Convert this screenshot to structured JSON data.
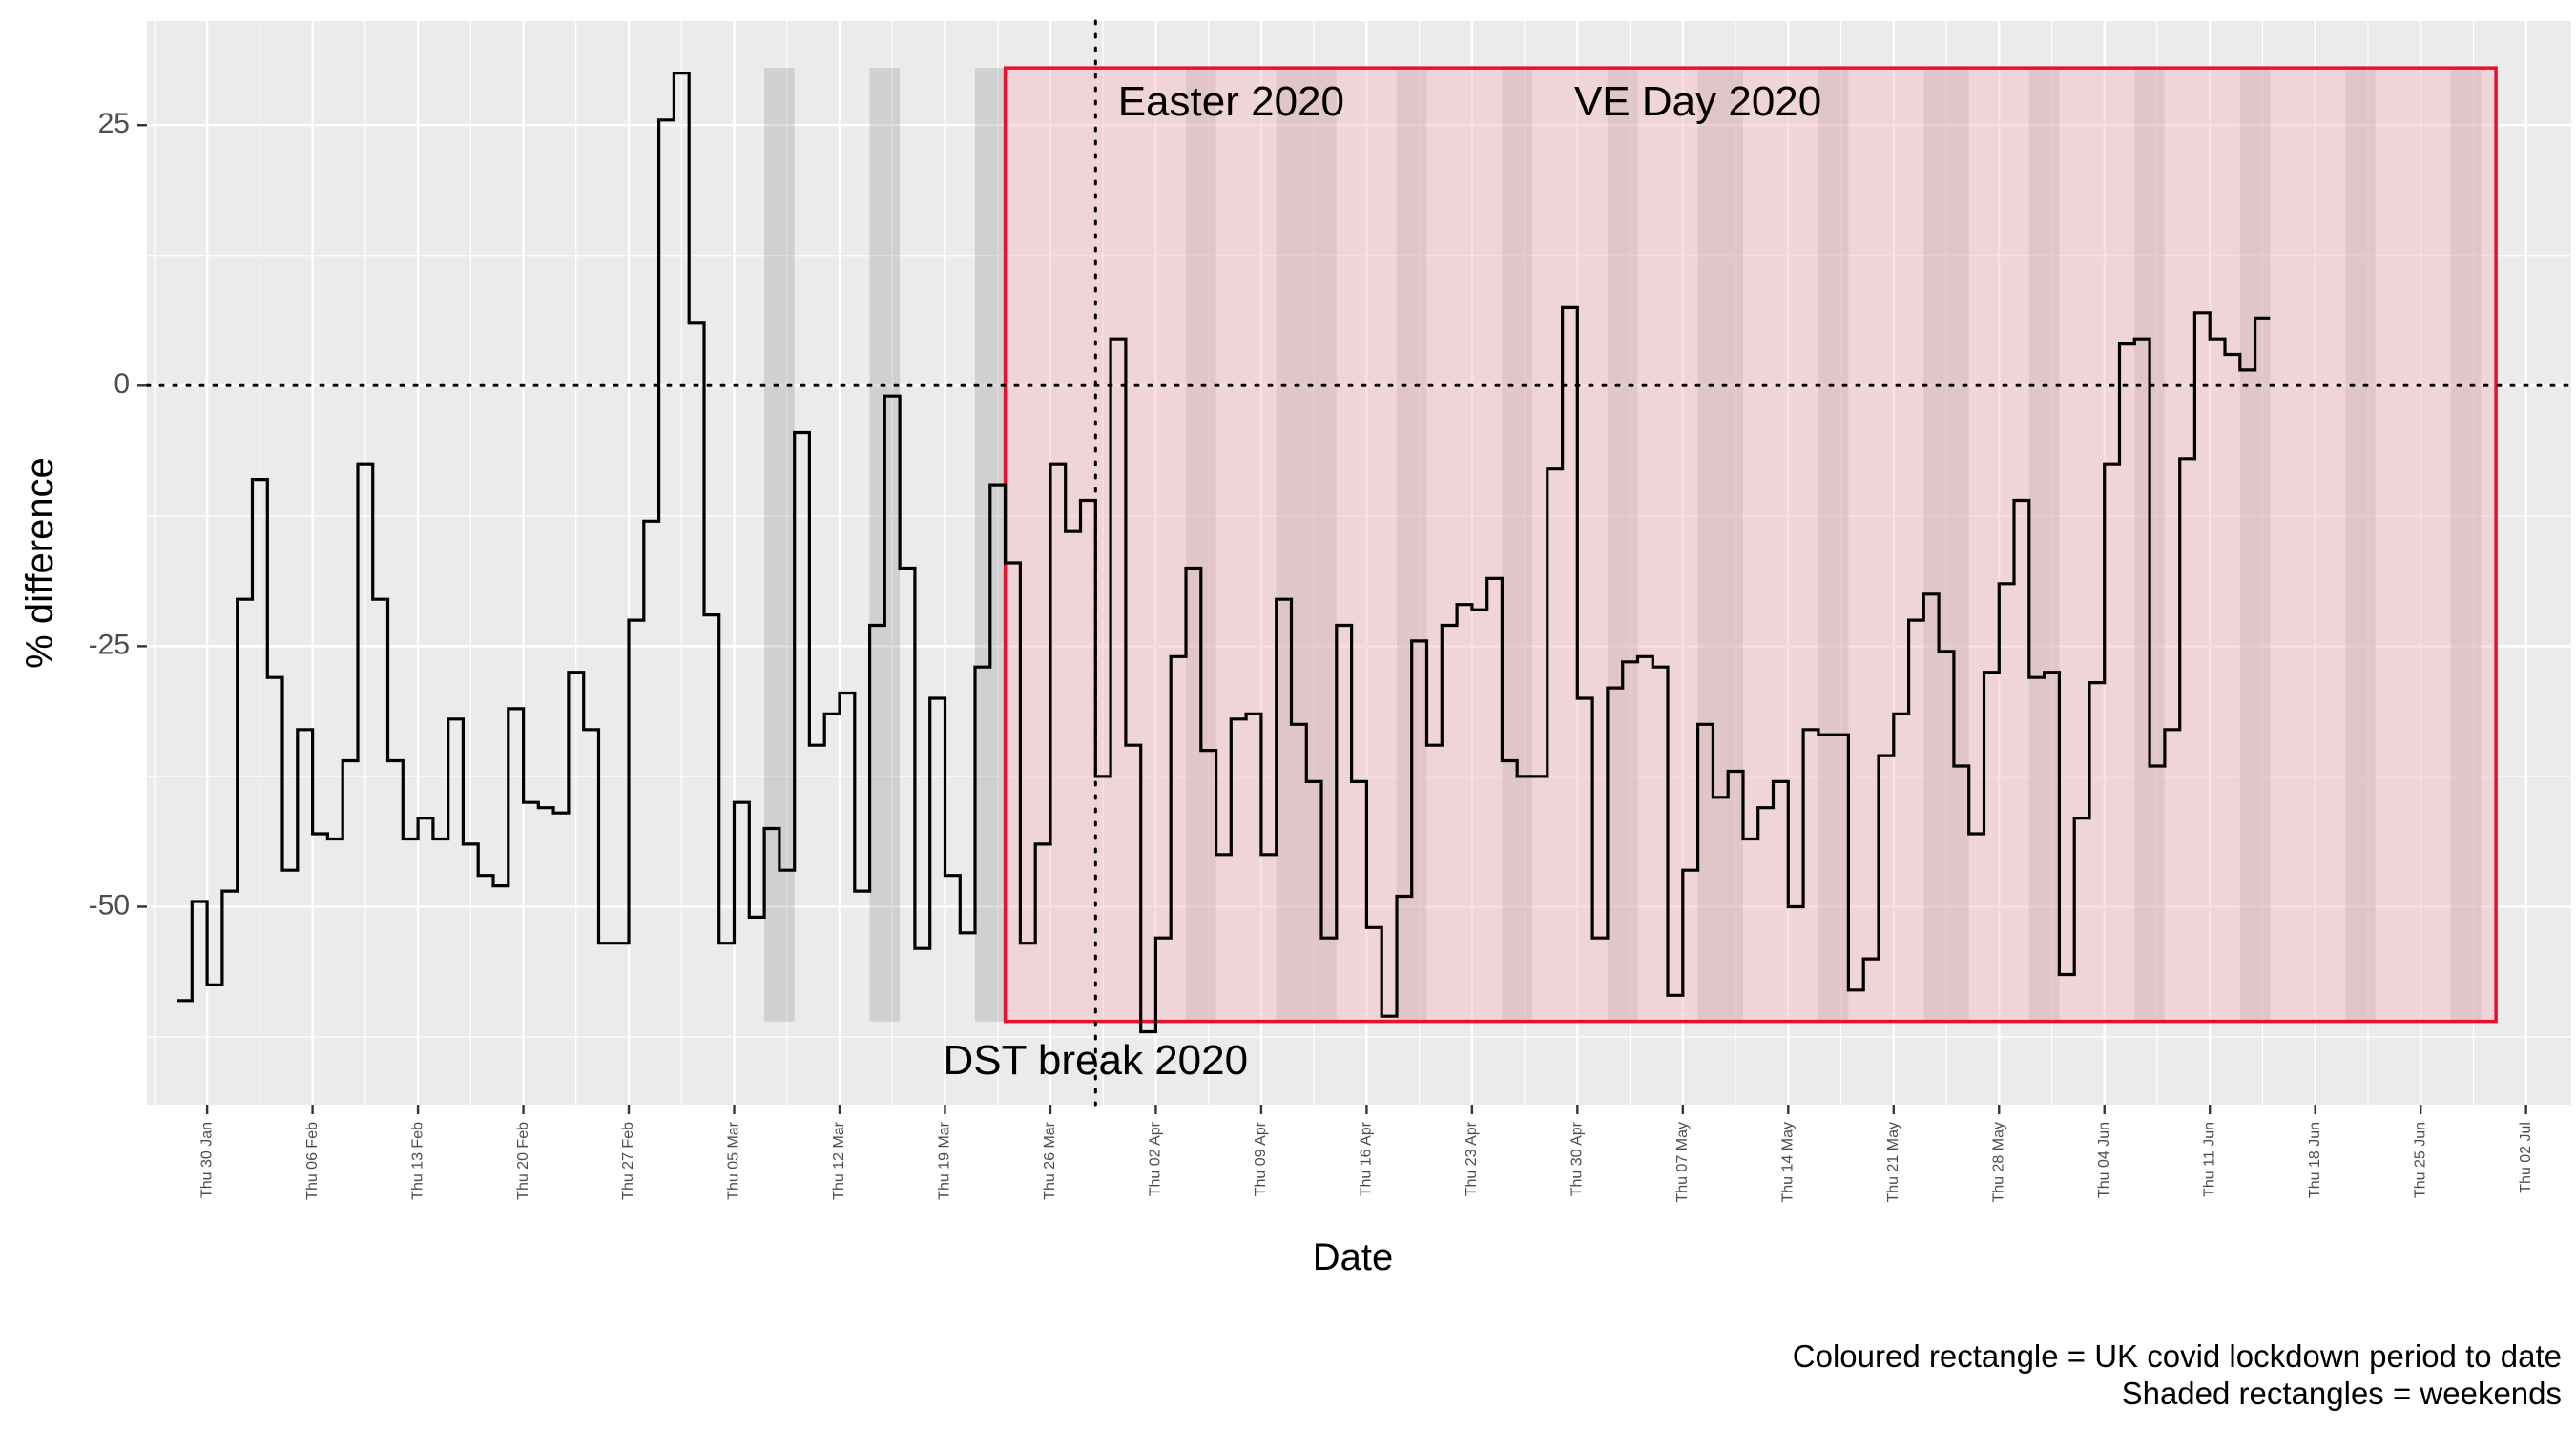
{
  "chart_data": {
    "type": "line",
    "step": true,
    "ylabel": "% difference",
    "xlabel": "Date",
    "ylim": [
      -69,
      35
    ],
    "y_ticks": [
      25,
      0,
      -25,
      -50
    ],
    "y_tick_labels": [
      "25",
      "0",
      "-25",
      "-50"
    ],
    "x_range": [
      "2020-01-26",
      "2020-07-05"
    ],
    "x_tick_dates": [
      "2020-01-30",
      "2020-02-06",
      "2020-02-13",
      "2020-02-20",
      "2020-02-27",
      "2020-03-05",
      "2020-03-12",
      "2020-03-19",
      "2020-03-26",
      "2020-04-02",
      "2020-04-09",
      "2020-04-16",
      "2020-04-23",
      "2020-04-30",
      "2020-05-07",
      "2020-05-14",
      "2020-05-21",
      "2020-05-28",
      "2020-06-04",
      "2020-06-11",
      "2020-06-18",
      "2020-06-25",
      "2020-07-02"
    ],
    "x_tick_labels": [
      "Thu 30 Jan",
      "Thu 06 Feb",
      "Thu 13 Feb",
      "Thu 20 Feb",
      "Thu 27 Feb",
      "Thu 05 Mar",
      "Thu 12 Mar",
      "Thu 19 Mar",
      "Thu 26 Mar",
      "Thu 02 Apr",
      "Thu 09 Apr",
      "Thu 16 Apr",
      "Thu 23 Apr",
      "Thu 30 Apr",
      "Thu 07 May",
      "Thu 14 May",
      "Thu 21 May",
      "Thu 28 May",
      "Thu 04 Jun",
      "Thu 11 Jun",
      "Thu 18 Jun",
      "Thu 25 Jun",
      "Thu 02 Jul"
    ],
    "grid": true,
    "reference_line_y": 0,
    "series": [
      {
        "start_date": "2020-01-28",
        "values": [
          -59,
          -49.5,
          -57.5,
          -48.5,
          -20.5,
          -9,
          -28,
          -46.5,
          -33,
          -43,
          -43.5,
          -36,
          -7.5,
          -20.5,
          -36,
          -43.5,
          -41.5,
          -43.5,
          -32,
          -44,
          -47,
          -48,
          -31,
          -40,
          -40.5,
          -41,
          -27.5,
          -33,
          -53.5,
          -53.5,
          -22.5,
          -13,
          25.5,
          30,
          6,
          -22,
          -53.5,
          -40,
          -51,
          -42.5,
          -46.5,
          -4.5,
          -34.5,
          -31.5,
          -29.5,
          -48.5,
          -23,
          -1,
          -17.5,
          -54,
          -30,
          -47,
          -52.5,
          -27,
          -9.5,
          -17,
          -53.5,
          -44,
          -7.5,
          -14,
          -11,
          -37.5,
          4.5,
          -34.5,
          -62,
          -53,
          -26,
          -17.5,
          -35,
          -45,
          -32,
          -31.5,
          -45,
          -20.5,
          -32.5,
          -38,
          -53,
          -23,
          -38,
          -52,
          -60.5,
          -49,
          -24.5,
          -34.5,
          -23,
          -21,
          -21.5,
          -18.5,
          -36,
          -37.5,
          -37.5,
          -8,
          7.5,
          -30,
          -53,
          -29,
          -26.5,
          -26,
          -27,
          -58.5,
          -46.5,
          -32.5,
          -39.5,
          -37,
          -43.5,
          -40.5,
          -38,
          -50,
          -33,
          -33.5,
          -33.5,
          -58,
          -55,
          -35.5,
          -31.5,
          -22.5,
          -20,
          -25.5,
          -36.5,
          -43,
          -27.5,
          -19,
          -11,
          -28,
          -27.5,
          -56.5,
          -41.5,
          -28.5,
          -7.5,
          4,
          4.5,
          -36.5,
          -33,
          -7,
          7,
          4.5,
          3,
          1.5,
          6.5
        ]
      }
    ],
    "weekend_shading_dates": [
      "2020-03-07",
      "2020-03-14",
      "2020-03-21",
      "2020-04-04",
      "2020-04-11",
      "2020-04-18",
      "2020-04-25",
      "2020-05-02",
      "2020-05-09",
      "2020-05-16",
      "2020-05-23",
      "2020-05-30",
      "2020-06-06",
      "2020-06-13",
      "2020-06-20",
      "2020-06-27"
    ],
    "extra_shading_dates": [
      "2020-04-10",
      "2020-04-13",
      "2020-05-08",
      "2020-05-25"
    ],
    "lockdown_rectangle": {
      "start": "2020-03-23",
      "end": "2020-06-30",
      "ymin": -61,
      "ymax": 30.5,
      "color": "#e8112d"
    },
    "vlines": [
      {
        "date": "2020-03-29",
        "label": "DST break 2020"
      }
    ],
    "annotations": [
      {
        "text": "Easter 2020",
        "date": "2020-04-07",
        "y": 27
      },
      {
        "text": "VE Day 2020",
        "date": "2020-05-08",
        "y": 27
      },
      {
        "text": "DST break 2020",
        "date": "2020-03-29",
        "y": -65
      }
    ],
    "caption": [
      "Coloured rectangle = UK covid lockdown period to date",
      "Shaded rectangles = weekends"
    ],
    "colors": {
      "panel": "#ebebeb",
      "grid": "#ffffff",
      "line": "#000000",
      "lockdown_fill": "#f5b8c2",
      "lockdown_border": "#e8112d",
      "weekend": "#9a9a9a"
    }
  }
}
